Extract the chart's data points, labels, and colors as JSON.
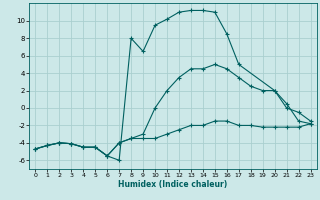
{
  "xlabel": "Humidex (Indice chaleur)",
  "bg_color": "#cce8e8",
  "grid_color": "#aacfcf",
  "line_color": "#006060",
  "xlim": [
    -0.5,
    23.5
  ],
  "ylim": [
    -7,
    12
  ],
  "xticks": [
    0,
    1,
    2,
    3,
    4,
    5,
    6,
    7,
    8,
    9,
    10,
    11,
    12,
    13,
    14,
    15,
    16,
    17,
    18,
    19,
    20,
    21,
    22,
    23
  ],
  "yticks": [
    -6,
    -4,
    -2,
    0,
    2,
    4,
    6,
    8,
    10
  ],
  "line_top_x": [
    0,
    1,
    2,
    3,
    4,
    5,
    6,
    7,
    8,
    9,
    10,
    11,
    12,
    13,
    14,
    15,
    16,
    17,
    20,
    21,
    22,
    23
  ],
  "line_top_y": [
    -4.7,
    -4.3,
    -4.0,
    -4.1,
    -4.5,
    -4.5,
    -5.5,
    -6.0,
    8.0,
    6.5,
    9.5,
    10.2,
    11.0,
    11.2,
    11.2,
    11.0,
    8.5,
    5.0,
    2.0,
    0.5,
    -1.5,
    -1.8
  ],
  "line_mid_x": [
    0,
    1,
    2,
    3,
    4,
    5,
    6,
    7,
    8,
    9,
    10,
    11,
    12,
    13,
    14,
    15,
    16,
    17,
    18,
    19,
    20,
    21,
    22,
    23
  ],
  "line_mid_y": [
    -4.7,
    -4.3,
    -4.0,
    -4.1,
    -4.5,
    -4.5,
    -5.5,
    -4.0,
    -3.5,
    -3.0,
    0.0,
    2.0,
    3.5,
    4.5,
    4.5,
    5.0,
    4.5,
    3.5,
    2.5,
    2.0,
    2.0,
    0.0,
    -0.5,
    -1.5
  ],
  "line_bot_x": [
    0,
    1,
    2,
    3,
    4,
    5,
    6,
    7,
    8,
    9,
    10,
    11,
    12,
    13,
    14,
    15,
    16,
    17,
    18,
    19,
    20,
    21,
    22,
    23
  ],
  "line_bot_y": [
    -4.7,
    -4.3,
    -4.0,
    -4.1,
    -4.5,
    -4.5,
    -5.5,
    -4.0,
    -3.5,
    -3.5,
    -3.5,
    -3.0,
    -2.5,
    -2.0,
    -2.0,
    -1.5,
    -1.5,
    -2.0,
    -2.0,
    -2.2,
    -2.2,
    -2.2,
    -2.2,
    -1.8
  ]
}
